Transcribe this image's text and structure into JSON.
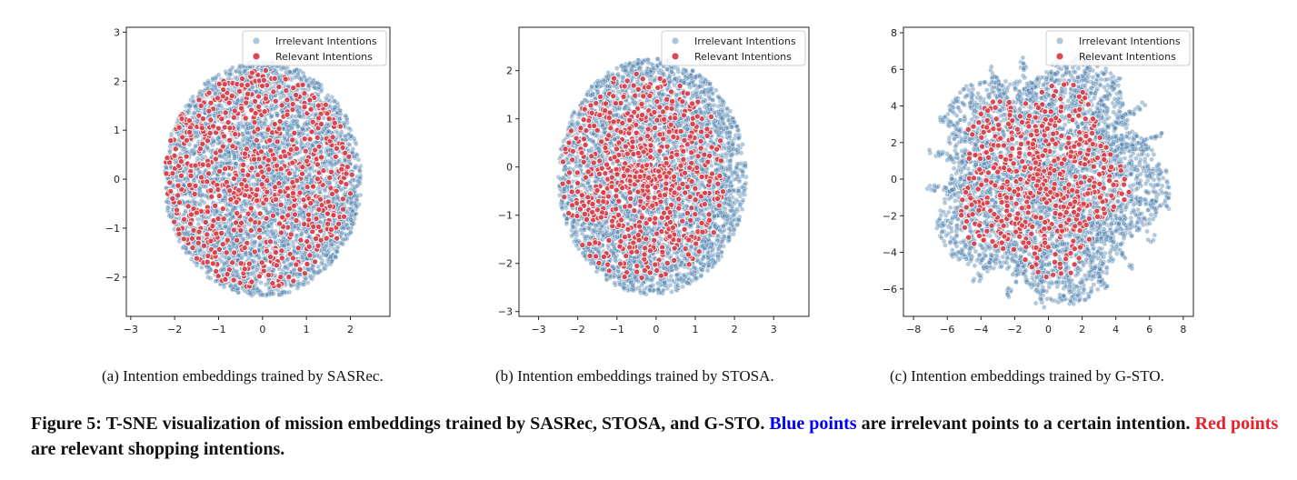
{
  "chart_data": [
    {
      "type": "scatter",
      "xlim": [
        -3.1,
        2.9
      ],
      "ylim": [
        -2.8,
        3.1
      ],
      "xticks": [
        -3,
        -2,
        -1,
        0,
        1,
        2
      ],
      "yticks": [
        -2,
        -1,
        0,
        1,
        2,
        3
      ],
      "legend_position": "top-right",
      "series": [
        {
          "name": "Irrelevant Intentions",
          "color": "#4a7eab",
          "shape": "dense disc",
          "center": [
            0,
            0
          ],
          "radius": [
            2.25,
            2.4
          ],
          "count": 4200
        },
        {
          "name": "Relevant Intentions",
          "color": "#d9404a",
          "shape": "dense disc",
          "center": [
            -0.1,
            0
          ],
          "radius": [
            2.15,
            2.25
          ],
          "count": 700
        }
      ],
      "caption": "(a)  Intention embeddings trained by SASRec."
    },
    {
      "type": "scatter",
      "xlim": [
        -3.5,
        3.9
      ],
      "ylim": [
        -3.1,
        2.9
      ],
      "xticks": [
        -3,
        -2,
        -1,
        0,
        1,
        2,
        3
      ],
      "yticks": [
        -3,
        -2,
        -1,
        0,
        1,
        2
      ],
      "legend_position": "top-right",
      "series": [
        {
          "name": "Irrelevant Intentions",
          "color": "#4a7eab",
          "shape": "dense disc",
          "center": [
            -0.1,
            -0.2
          ],
          "radius": [
            2.4,
            2.45
          ],
          "count": 4200
        },
        {
          "name": "Relevant Intentions",
          "color": "#d9404a",
          "shape": "concentrated at center",
          "center": [
            -0.3,
            -0.2
          ],
          "radius": [
            2.1,
            2.2
          ],
          "count": 700
        }
      ],
      "caption": "(b)  Intention embeddings trained by STOSA."
    },
    {
      "type": "scatter",
      "xlim": [
        -8.6,
        8.6
      ],
      "ylim": [
        -7.5,
        8.3
      ],
      "xticks": [
        -8,
        -6,
        -4,
        -2,
        0,
        2,
        4,
        6,
        8
      ],
      "yticks": [
        -6,
        -4,
        -2,
        0,
        2,
        4,
        6,
        8
      ],
      "legend_position": "top-right",
      "series": [
        {
          "name": "Irrelevant Intentions",
          "color": "#4a7eab",
          "shape": "irregular with streaks",
          "center": [
            0,
            0
          ],
          "radius": [
            6.5,
            6.3
          ],
          "count": 4200
        },
        {
          "name": "Relevant Intentions",
          "color": "#d9404a",
          "shape": "scattered in center",
          "center": [
            -0.5,
            0
          ],
          "radius": [
            4.8,
            5
          ],
          "count": 600
        }
      ],
      "caption": "(c)  Intention embeddings trained by G-STO."
    }
  ],
  "figure_caption": {
    "prefix": "Figure 5: T-SNE visualization of mission embeddings trained by SASRec, STOSA, and G-STO. ",
    "blue_text": "Blue points",
    "middle": " are irrelevant points to a certain intention. ",
    "red_text": "Red points",
    "suffix": " are relevant shopping intentions."
  }
}
